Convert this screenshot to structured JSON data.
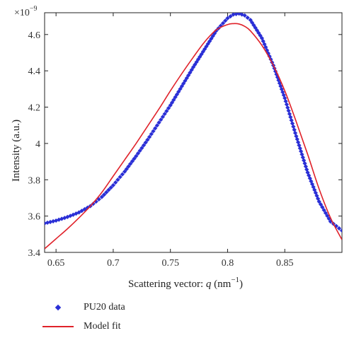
{
  "chart_data": {
    "type": "scatter",
    "multiplier_label": "×10",
    "multiplier_exp": "−9",
    "xlabel_prefix": "Scattering vector: ",
    "xlabel_var": "q",
    "xlabel_unit_open": " (nm",
    "xlabel_unit_exp": "−1",
    "xlabel_unit_close": ")",
    "ylabel": "Intensity (a.u.)",
    "xlim": [
      0.64,
      0.9
    ],
    "ylim": [
      3.4,
      4.72
    ],
    "xticks": [
      0.65,
      0.7,
      0.75,
      0.8,
      0.85
    ],
    "xtick_labels": [
      "0.65",
      "0.7",
      "0.75",
      "0.8",
      "0.85"
    ],
    "yticks": [
      3.4,
      3.6,
      3.8,
      4.0,
      4.2,
      4.4,
      4.6
    ],
    "ytick_labels": [
      "3.4",
      "3.6",
      "3.8",
      "4",
      "4.2",
      "4.4",
      "4.6"
    ],
    "series": [
      {
        "name": "PU20 data",
        "style": "markers",
        "color": "#2a2fd6",
        "x": [
          0.64,
          0.65,
          0.66,
          0.67,
          0.68,
          0.69,
          0.7,
          0.71,
          0.72,
          0.73,
          0.74,
          0.75,
          0.76,
          0.77,
          0.78,
          0.79,
          0.8,
          0.805,
          0.81,
          0.815,
          0.82,
          0.83,
          0.84,
          0.85,
          0.86,
          0.87,
          0.88,
          0.89,
          0.9
        ],
        "y": [
          3.56,
          3.575,
          3.595,
          3.62,
          3.655,
          3.705,
          3.77,
          3.845,
          3.93,
          4.02,
          4.115,
          4.21,
          4.315,
          4.42,
          4.52,
          4.62,
          4.69,
          4.71,
          4.715,
          4.705,
          4.68,
          4.58,
          4.43,
          4.25,
          4.04,
          3.84,
          3.68,
          3.57,
          3.52
        ]
      },
      {
        "name": "Model fit",
        "style": "line",
        "color": "#e0222a",
        "x": [
          0.64,
          0.65,
          0.66,
          0.67,
          0.68,
          0.69,
          0.7,
          0.71,
          0.72,
          0.73,
          0.74,
          0.75,
          0.76,
          0.77,
          0.78,
          0.79,
          0.8,
          0.805,
          0.81,
          0.815,
          0.82,
          0.83,
          0.84,
          0.85,
          0.86,
          0.87,
          0.88,
          0.89,
          0.9
        ],
        "y": [
          3.42,
          3.475,
          3.53,
          3.59,
          3.655,
          3.73,
          3.82,
          3.91,
          4.0,
          4.095,
          4.19,
          4.29,
          4.385,
          4.475,
          4.56,
          4.625,
          4.655,
          4.66,
          4.658,
          4.645,
          4.62,
          4.54,
          4.43,
          4.29,
          4.12,
          3.94,
          3.75,
          3.59,
          3.47
        ]
      }
    ]
  },
  "legend": {
    "items": [
      {
        "label": "PU20 data"
      },
      {
        "label": "Model fit"
      }
    ]
  }
}
